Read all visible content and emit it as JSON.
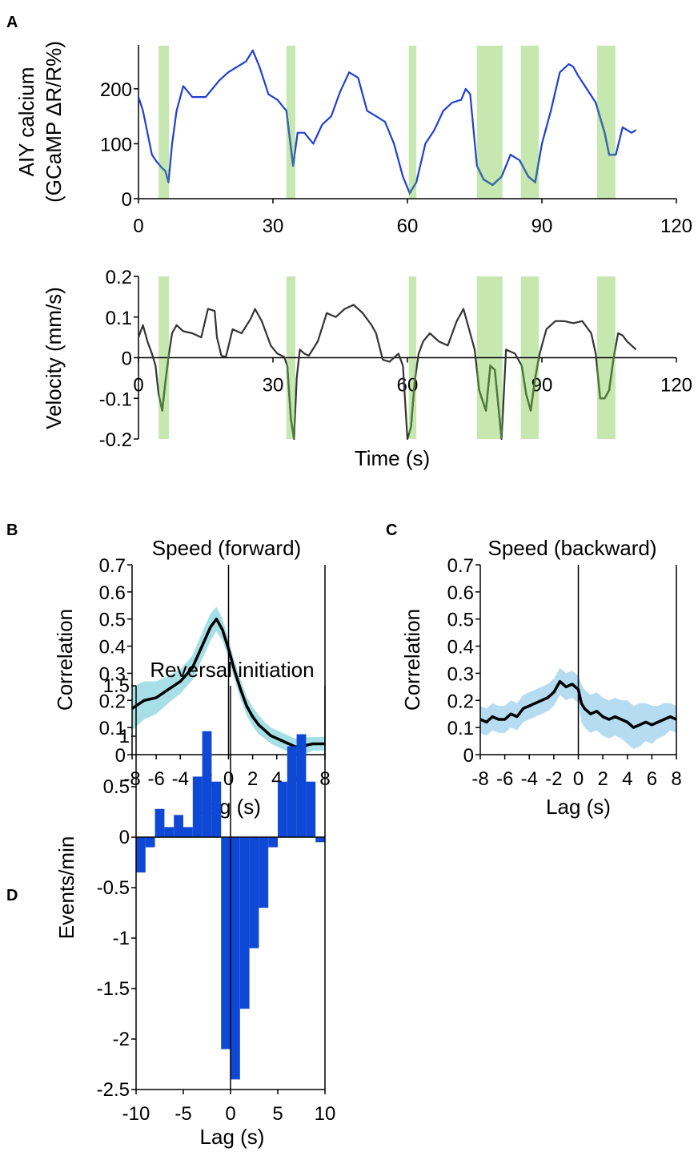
{
  "panels": [
    {
      "id": "A",
      "label": "A"
    },
    {
      "id": "B",
      "label": "B"
    },
    {
      "id": "C",
      "label": "C"
    },
    {
      "id": "D",
      "label": "D"
    }
  ],
  "colors": {
    "shade": "#c6e8b0",
    "calcium": "#1f3fd0",
    "calcium_shaded": "#3a6aa8",
    "velocity": "#333333",
    "velocity_shaded": "#4f7a3a",
    "forward_band": "#a6dfe6",
    "backward_band": "#b6dcf2",
    "mean_line": "#000000",
    "bars": "#1048d6"
  },
  "shaded_intervals_s": [
    [
      4.5,
      6.8
    ],
    [
      33,
      35
    ],
    [
      60.3,
      62
    ],
    [
      75.5,
      81.2
    ],
    [
      85.3,
      89.3
    ],
    [
      102.3,
      106.4
    ]
  ],
  "chart_data": [
    {
      "id": "A-calcium",
      "type": "line",
      "ylabel_lines": [
        "AIY calcium",
        "(GCaMP ΔR/R%)"
      ],
      "xlabel": "",
      "xlim": [
        0,
        120
      ],
      "ylim": [
        0,
        280
      ],
      "xticks": [
        "0",
        "30",
        "60",
        "90",
        "120"
      ],
      "xtick_values": [
        0,
        30,
        60,
        90,
        120
      ],
      "yticks": [
        "0",
        "100",
        "200"
      ],
      "ytick_values": [
        0,
        100,
        200
      ],
      "x": [
        0,
        1,
        2,
        3,
        4,
        5,
        6,
        6.7,
        7.5,
        8.5,
        10,
        12,
        15,
        18,
        20,
        22,
        24,
        25.5,
        27,
        29,
        31,
        33,
        34.5,
        35.5,
        37,
        39,
        41,
        43,
        45,
        47,
        49,
        51,
        53,
        55,
        57,
        59,
        60.5,
        62,
        64,
        66,
        68,
        70,
        72,
        73,
        74,
        75.5,
        77,
        79,
        81,
        83,
        85,
        87,
        88.5,
        90,
        92,
        94,
        96,
        97,
        98,
        100,
        102,
        104,
        105,
        106.5,
        108,
        110,
        111
      ],
      "y": [
        185,
        160,
        120,
        80,
        68,
        58,
        50,
        30,
        100,
        160,
        205,
        185,
        185,
        215,
        230,
        240,
        250,
        270,
        240,
        190,
        180,
        160,
        60,
        120,
        120,
        100,
        135,
        150,
        195,
        230,
        220,
        160,
        150,
        140,
        100,
        40,
        10,
        30,
        100,
        125,
        160,
        175,
        180,
        200,
        190,
        60,
        35,
        25,
        40,
        80,
        70,
        40,
        30,
        100,
        160,
        230,
        245,
        240,
        225,
        200,
        175,
        120,
        80,
        80,
        130,
        120,
        125
      ]
    },
    {
      "id": "A-velocity",
      "type": "line",
      "ylabel": "Velocity (mm/s)",
      "xlabel": "Time (s)",
      "xlim": [
        0,
        120
      ],
      "ylim": [
        -0.2,
        0.2
      ],
      "xticks": [
        "0",
        "30",
        "60",
        "90",
        "120"
      ],
      "xtick_values": [
        0,
        30,
        60,
        90,
        120
      ],
      "yticks": [
        "-0.2",
        "-0.1",
        "0",
        "0.1",
        "0.2"
      ],
      "ytick_values": [
        -0.2,
        -0.1,
        0,
        0.1,
        0.2
      ],
      "x": [
        0,
        1,
        2,
        3,
        3.8,
        4.5,
        5.3,
        6,
        6.8,
        7.5,
        8.5,
        10,
        12,
        14,
        15.5,
        17,
        17.5,
        18.5,
        19.5,
        21,
        23,
        25,
        26,
        27.5,
        28.5,
        29.5,
        31,
        32.5,
        33.2,
        34,
        34.7,
        35.3,
        36,
        37,
        38,
        40,
        42,
        44,
        46,
        48,
        50,
        52,
        53,
        54.5,
        56,
        58,
        59,
        60,
        60.8,
        61.6,
        62.5,
        63.5,
        65,
        67,
        69,
        71,
        72.5,
        74,
        75,
        76,
        77.5,
        78.5,
        79.5,
        81,
        82,
        84,
        85.5,
        86.5,
        87.5,
        88.5,
        89.5,
        91,
        93,
        95,
        97,
        99,
        101,
        102,
        103,
        104,
        105,
        106,
        107,
        108,
        109,
        110,
        111
      ],
      "y": [
        0.05,
        0.08,
        0.04,
        0.01,
        -0.02,
        -0.09,
        -0.13,
        -0.06,
        0.01,
        0.06,
        0.08,
        0.065,
        0.06,
        0.05,
        0.12,
        0.115,
        0.05,
        0.005,
        0.002,
        0.07,
        0.06,
        0.095,
        0.12,
        0.09,
        0.06,
        0.03,
        0.01,
        0.002,
        -0.02,
        -0.15,
        -0.2,
        -0.05,
        0.02,
        0.01,
        0.005,
        0.04,
        0.11,
        0.1,
        0.12,
        0.13,
        0.11,
        0.08,
        0.06,
        -0.005,
        -0.01,
        0.01,
        -0.02,
        -0.2,
        -0.17,
        -0.06,
        0.01,
        0.04,
        0.06,
        0.04,
        0.03,
        0.09,
        0.12,
        0.06,
        0.02,
        -0.08,
        -0.13,
        -0.02,
        -0.03,
        -0.2,
        0.02,
        0.01,
        -0.02,
        -0.09,
        -0.13,
        -0.05,
        0.01,
        0.07,
        0.09,
        0.09,
        0.085,
        0.09,
        0.06,
        0.01,
        -0.1,
        -0.1,
        -0.08,
        0.0,
        0.06,
        0.055,
        0.04,
        0.03,
        0.02
      ]
    },
    {
      "id": "B",
      "type": "line",
      "title": "Speed (forward)",
      "xlabel": "Lag (s)",
      "ylabel": "Correlation",
      "xlim": [
        -8,
        8
      ],
      "ylim": [
        0,
        0.7
      ],
      "xticks": [
        "-8",
        "-6",
        "-4",
        "-2",
        "0",
        "2",
        "4",
        "6",
        "8"
      ],
      "xtick_values": [
        -8,
        -6,
        -4,
        -2,
        0,
        2,
        4,
        6,
        8
      ],
      "yticks": [
        "0",
        "0.1",
        "0.2",
        "0.3",
        "0.4",
        "0.5",
        "0.6",
        "0.7"
      ],
      "ytick_values": [
        0,
        0.1,
        0.2,
        0.3,
        0.4,
        0.5,
        0.6,
        0.7
      ],
      "x": [
        -8,
        -7,
        -6,
        -5,
        -4,
        -3,
        -2,
        -1.5,
        -1,
        -0.5,
        0,
        0.5,
        1,
        1.5,
        2,
        2.5,
        3,
        3.5,
        4,
        4.5,
        5,
        5.5,
        6,
        6.5,
        7,
        8
      ],
      "y": [
        0.17,
        0.2,
        0.21,
        0.24,
        0.27,
        0.32,
        0.42,
        0.47,
        0.5,
        0.46,
        0.39,
        0.31,
        0.24,
        0.18,
        0.14,
        0.11,
        0.09,
        0.07,
        0.06,
        0.05,
        0.04,
        0.03,
        0.025,
        0.035,
        0.04,
        0.04
      ],
      "band_half_width": [
        0.08,
        0.07,
        0.06,
        0.05,
        0.045,
        0.045,
        0.05,
        0.05,
        0.045,
        0.04,
        0.035,
        0.035,
        0.035,
        0.035,
        0.035,
        0.035,
        0.03,
        0.03,
        0.03,
        0.03,
        0.03,
        0.03,
        0.025,
        0.03,
        0.025,
        0.025
      ]
    },
    {
      "id": "C",
      "type": "line",
      "title": "Speed (backward)",
      "xlabel": "Lag (s)",
      "ylabel": "Correlation",
      "xlim": [
        -8,
        8
      ],
      "ylim": [
        0,
        0.7
      ],
      "xticks": [
        "-8",
        "-6",
        "-4",
        "-2",
        "0",
        "2",
        "4",
        "6",
        "8"
      ],
      "xtick_values": [
        -8,
        -6,
        -4,
        -2,
        0,
        2,
        4,
        6,
        8
      ],
      "yticks": [
        "0",
        "0.1",
        "0.2",
        "0.3",
        "0.4",
        "0.5",
        "0.6",
        "0.7"
      ],
      "ytick_values": [
        0,
        0.1,
        0.2,
        0.3,
        0.4,
        0.5,
        0.6,
        0.7
      ],
      "x": [
        -8,
        -7.5,
        -7,
        -6.5,
        -6,
        -5.5,
        -5,
        -4.5,
        -4,
        -3.5,
        -3,
        -2.5,
        -2,
        -1.5,
        -1,
        -0.5,
        0,
        0.25,
        0.5,
        1,
        1.5,
        2,
        2.5,
        3,
        3.5,
        4,
        4.5,
        5,
        5.5,
        6,
        6.5,
        7,
        7.5,
        8
      ],
      "y": [
        0.13,
        0.12,
        0.14,
        0.13,
        0.13,
        0.15,
        0.14,
        0.17,
        0.18,
        0.19,
        0.2,
        0.21,
        0.23,
        0.27,
        0.25,
        0.26,
        0.24,
        0.19,
        0.17,
        0.15,
        0.16,
        0.14,
        0.13,
        0.14,
        0.13,
        0.12,
        0.1,
        0.11,
        0.12,
        0.11,
        0.12,
        0.13,
        0.14,
        0.13
      ],
      "band_half_width": [
        0.05,
        0.05,
        0.05,
        0.05,
        0.05,
        0.05,
        0.05,
        0.05,
        0.05,
        0.05,
        0.05,
        0.05,
        0.05,
        0.05,
        0.05,
        0.05,
        0.05,
        0.07,
        0.07,
        0.07,
        0.07,
        0.07,
        0.07,
        0.07,
        0.07,
        0.08,
        0.08,
        0.08,
        0.07,
        0.07,
        0.06,
        0.06,
        0.05,
        0.05
      ]
    },
    {
      "id": "D",
      "type": "bar",
      "title": "Reversal initiation",
      "xlabel": "Lag (s)",
      "ylabel": "Events/min",
      "xlim": [
        -10,
        10
      ],
      "ylim": [
        -2.5,
        1.5
      ],
      "bar_width": 1,
      "xticks": [
        "-10",
        "-5",
        "0",
        "5",
        "10"
      ],
      "xtick_values": [
        -10,
        -5,
        0,
        5,
        10
      ],
      "yticks": [
        "-2.5",
        "-2",
        "-1.5",
        "-1",
        "-0.5",
        "0",
        "0.5",
        "1",
        "1.5"
      ],
      "ytick_values": [
        -2.5,
        -2,
        -1.5,
        -1,
        -0.5,
        0,
        0.5,
        1,
        1.5
      ],
      "x": [
        -9.5,
        -8.5,
        -7.5,
        -6.5,
        -5.5,
        -4.5,
        -3.5,
        -2.5,
        -1.5,
        -0.5,
        0.5,
        1.5,
        2.5,
        3.5,
        4.5,
        5.5,
        6.5,
        7.5,
        8.5,
        9.5
      ],
      "values": [
        -0.35,
        -0.1,
        0.28,
        0.1,
        0.22,
        0.1,
        0.6,
        1.05,
        0.55,
        -2.1,
        -2.4,
        -1.7,
        -1.1,
        -0.7,
        -0.1,
        0.55,
        0.9,
        1.02,
        0.55,
        -0.05
      ]
    }
  ]
}
